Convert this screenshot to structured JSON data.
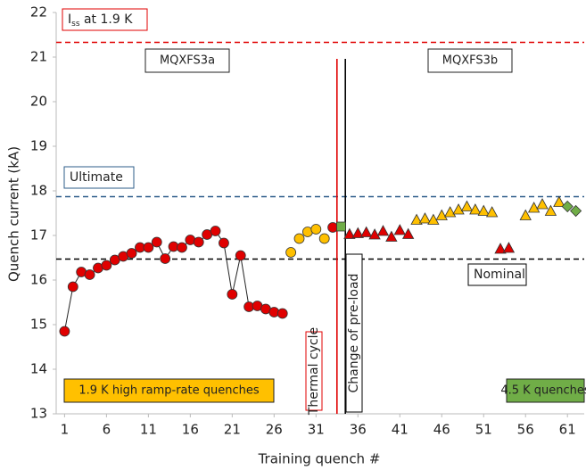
{
  "chart_data": {
    "type": "scatter",
    "x_label": "Training quench #",
    "y_label": "Quench current (kA)",
    "xlim": [
      0,
      63
    ],
    "ylim": [
      13,
      22
    ],
    "xticks": [
      1,
      6,
      11,
      16,
      21,
      26,
      31,
      36,
      41,
      46,
      51,
      56,
      61
    ],
    "yticks": [
      13,
      14,
      15,
      16,
      17,
      18,
      19,
      20,
      21,
      22
    ],
    "series": [
      {
        "marker": "circle",
        "color": "#e00000",
        "line": true,
        "x": [
          1,
          2,
          3,
          4,
          5,
          6,
          7,
          8,
          9,
          10,
          11,
          12,
          13,
          14,
          15,
          16,
          17,
          18,
          19,
          20,
          21,
          22,
          23,
          24,
          25,
          26,
          27
        ],
        "values": [
          14.85,
          15.85,
          16.18,
          16.12,
          16.27,
          16.33,
          16.45,
          16.53,
          16.6,
          16.73,
          16.73,
          16.85,
          16.48,
          16.75,
          16.73,
          16.9,
          16.85,
          17.02,
          17.1,
          16.83,
          15.68,
          16.55,
          15.4,
          15.42,
          15.35,
          15.28,
          15.25
        ]
      },
      {
        "marker": "circle",
        "color": "#ffc000",
        "line": false,
        "x": [
          28,
          29,
          30,
          31,
          32
        ],
        "values": [
          16.62,
          16.93,
          17.08,
          17.14,
          16.93
        ]
      },
      {
        "marker": "circle",
        "color": "#e00000",
        "line": false,
        "x": [
          33
        ],
        "values": [
          17.18
        ]
      },
      {
        "marker": "square",
        "color": "#70ad47",
        "line": false,
        "x": [
          34
        ],
        "values": [
          17.2
        ]
      },
      {
        "marker": "triangle",
        "color": "#e00000",
        "line": false,
        "x": [
          35,
          36,
          37,
          38,
          39,
          40,
          41,
          42,
          53,
          54
        ],
        "values": [
          17.03,
          17.05,
          17.07,
          17.02,
          17.1,
          16.97,
          17.12,
          17.03,
          16.7,
          16.72
        ]
      },
      {
        "marker": "triangle",
        "color": "#ffc000",
        "line": false,
        "x": [
          43,
          44,
          45,
          46,
          47,
          48,
          49,
          50,
          51,
          52,
          56,
          57,
          58,
          59,
          60
        ],
        "values": [
          17.35,
          17.38,
          17.35,
          17.45,
          17.52,
          17.58,
          17.65,
          17.58,
          17.55,
          17.52,
          17.45,
          17.62,
          17.7,
          17.55,
          17.75
        ]
      },
      {
        "marker": "diamond",
        "color": "#70ad47",
        "line": false,
        "x": [
          61,
          62
        ],
        "values": [
          17.65,
          17.55
        ]
      }
    ],
    "hlines": [
      {
        "value": 21.33,
        "color": "#e00000",
        "label": "I",
        "label_sub": "ss",
        "label_rest": " at 1.9 K"
      },
      {
        "value": 17.87,
        "color": "#2e5c8a",
        "label": "Ultimate"
      },
      {
        "value": 16.47,
        "color": "#000000",
        "label": "Nominal"
      }
    ],
    "vlines": [
      {
        "value": 33.5,
        "color": "#e00000",
        "label": "Thermal cycle"
      },
      {
        "value": 34.5,
        "color": "#000000",
        "label": "Change of pre-load"
      }
    ],
    "annotations": [
      {
        "text": "MQXFS3a",
        "fill": "#ffffff"
      },
      {
        "text": "MQXFS3b",
        "fill": "#ffffff"
      },
      {
        "text": "1.9 K high ramp-rate quenches",
        "fill": "#ffc000"
      },
      {
        "text": "4.5 K quenches",
        "fill": "#70ad47"
      }
    ]
  }
}
